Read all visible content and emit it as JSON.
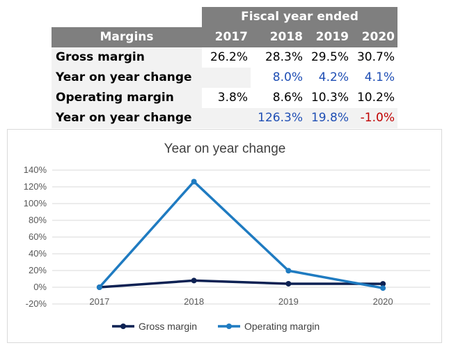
{
  "table": {
    "fiscal_header": "Fiscal year ended",
    "margins_label": "Margins",
    "years": [
      "2017",
      "2018",
      "2019",
      "2020"
    ],
    "rows": [
      {
        "label": "Gross margin",
        "values": [
          "26.2%",
          "28.3%",
          "29.5%",
          "30.7%"
        ]
      },
      {
        "label": "Year on year change",
        "values": [
          "",
          "8.0%",
          "4.2%",
          "4.1%"
        ]
      },
      {
        "label": "Operating margin",
        "values": [
          "3.8%",
          "8.6%",
          "10.3%",
          "10.2%"
        ]
      },
      {
        "label": "Year on year change",
        "values": [
          "",
          "126.3%",
          "19.8%",
          "-1.0%"
        ]
      }
    ]
  },
  "chart_data": {
    "type": "line",
    "title": "Year on year change",
    "x": [
      "2017",
      "2018",
      "2019",
      "2020"
    ],
    "ylim": [
      -20,
      140
    ],
    "yticks": [
      -20,
      0,
      20,
      40,
      60,
      80,
      100,
      120,
      140
    ],
    "ytick_labels": [
      "-20%",
      "0%",
      "20%",
      "40%",
      "60%",
      "80%",
      "100%",
      "120%",
      "140%"
    ],
    "grid": true,
    "legend": "bottom",
    "series": [
      {
        "name": "Gross margin",
        "values": [
          0,
          8.0,
          4.2,
          4.1
        ],
        "color": "#0d2153"
      },
      {
        "name": "Operating margin",
        "values": [
          0,
          126.3,
          19.8,
          -1.0
        ],
        "color": "#1f7bc1"
      }
    ]
  },
  "colors": {
    "header_gray": "#7f7f7f",
    "row_bg": "#f2f2f2",
    "positive_change": "#1f4eb4",
    "negative_change": "#c00000"
  }
}
